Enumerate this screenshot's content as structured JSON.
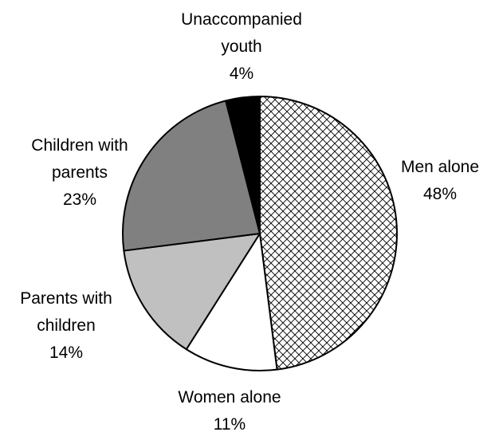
{
  "chart_data": {
    "type": "pie",
    "slices": [
      {
        "label_lines": [
          "Men alone"
        ],
        "value": 48,
        "value_label": "48%",
        "fill": "#ffffff",
        "pattern": "crosshatch"
      },
      {
        "label_lines": [
          "Women alone"
        ],
        "value": 11,
        "value_label": "11%",
        "fill": "#ffffff"
      },
      {
        "label_lines": [
          "Parents with",
          "children"
        ],
        "value": 14,
        "value_label": "14%",
        "fill": "#c0c0c0"
      },
      {
        "label_lines": [
          "Children with",
          "parents"
        ],
        "value": 23,
        "value_label": "23%",
        "fill": "#808080"
      },
      {
        "label_lines": [
          "Unaccompanied",
          "youth"
        ],
        "value": 4,
        "value_label": "4%",
        "fill": "#000000"
      }
    ],
    "start_angle_deg": 0,
    "direction": "clockwise",
    "outline_color": "#000000",
    "legend": "none"
  }
}
